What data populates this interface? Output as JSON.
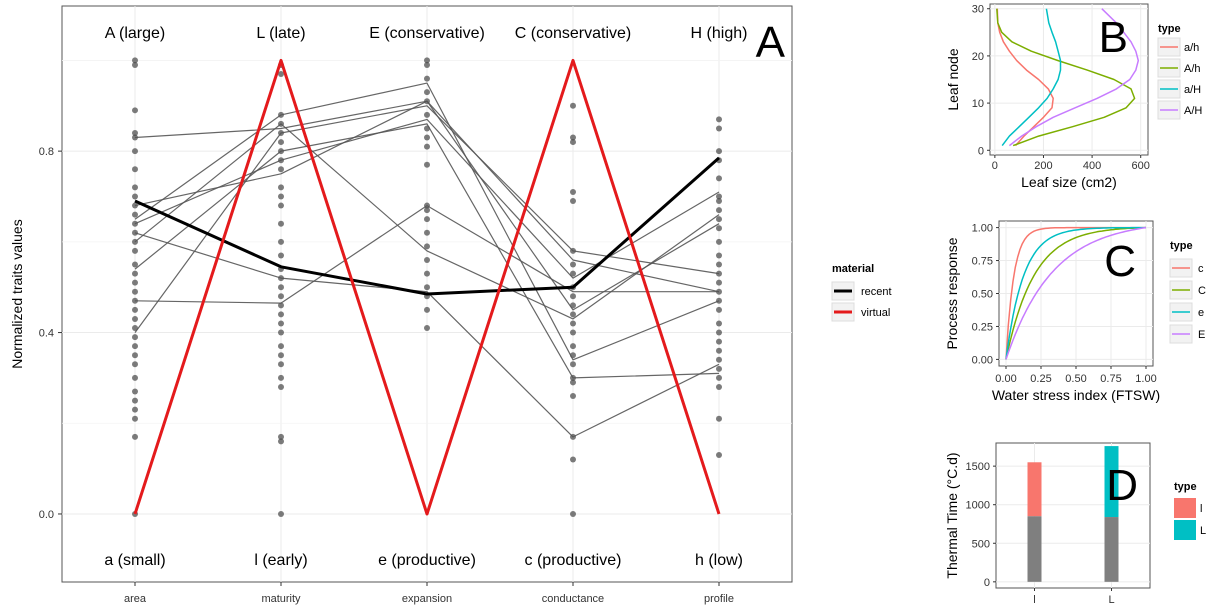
{
  "chart_data": [
    {
      "panel": "A",
      "type": "line",
      "ylabel": "Normalized traits values",
      "yticks": [
        0.0,
        0.4,
        0.8
      ],
      "ylim": [
        -0.15,
        1.12
      ],
      "categories": [
        "area",
        "maturity",
        "expansion",
        "conductance",
        "profile"
      ],
      "top_labels": [
        "A (large)",
        "L (late)",
        "E (conservative)",
        "C (conservative)",
        "H (high)"
      ],
      "bottom_labels": [
        "a (small)",
        "l (early)",
        "e (productive)",
        "c (productive)",
        "h (low)"
      ],
      "legend": {
        "title": "material",
        "entries": [
          "recent",
          "virtual"
        ]
      },
      "series": [
        {
          "name": "recent",
          "color": "#000000",
          "values": [
            0.69,
            0.545,
            0.485,
            0.5,
            0.785
          ]
        },
        {
          "name": "virtual",
          "color": "#e41a1c",
          "values": [
            0.0,
            1.0,
            0.0,
            1.0,
            0.0
          ]
        }
      ],
      "other_lines": [
        [
          0.83,
          0.85,
          0.91,
          0.45,
          0.64
        ],
        [
          0.47,
          0.465,
          0.68,
          0.49,
          0.49
        ],
        [
          0.65,
          0.88,
          0.95,
          0.34,
          0.47
        ],
        [
          0.54,
          0.8,
          0.86,
          0.3,
          0.31
        ],
        [
          0.62,
          0.52,
          0.49,
          0.17,
          0.33
        ],
        [
          0.68,
          0.75,
          0.91,
          0.56,
          0.49
        ],
        [
          0.6,
          0.86,
          0.58,
          0.43,
          0.66
        ],
        [
          0.64,
          0.78,
          0.87,
          0.52,
          0.71
        ],
        [
          0.4,
          0.84,
          0.9,
          0.58,
          0.53
        ]
      ],
      "points": [
        [
          1.0,
          0.99,
          0.89,
          0.84,
          0.83,
          0.8,
          0.76,
          0.72,
          0.7,
          0.68,
          0.66,
          0.64,
          0.62,
          0.6,
          0.58,
          0.55,
          0.53,
          0.51,
          0.49,
          0.47,
          0.45,
          0.43,
          0.41,
          0.39,
          0.37,
          0.35,
          0.33,
          0.3,
          0.27,
          0.25,
          0.23,
          0.21,
          0.17,
          0.0
        ],
        [
          0.99,
          0.97,
          0.88,
          0.86,
          0.84,
          0.82,
          0.8,
          0.78,
          0.76,
          0.72,
          0.7,
          0.68,
          0.64,
          0.6,
          0.57,
          0.54,
          0.52,
          0.5,
          0.48,
          0.46,
          0.44,
          0.42,
          0.4,
          0.37,
          0.35,
          0.33,
          0.3,
          0.28,
          0.17,
          0.16,
          0.0
        ],
        [
          1.0,
          0.99,
          0.96,
          0.93,
          0.91,
          0.88,
          0.85,
          0.83,
          0.81,
          0.77,
          0.68,
          0.67,
          0.65,
          0.62,
          0.59,
          0.56,
          0.53,
          0.5,
          0.48,
          0.45,
          0.41
        ],
        [
          0.9,
          0.83,
          0.82,
          0.71,
          0.69,
          0.58,
          0.55,
          0.53,
          0.5,
          0.48,
          0.46,
          0.44,
          0.42,
          0.4,
          0.37,
          0.35,
          0.33,
          0.3,
          0.29,
          0.26,
          0.17,
          0.12,
          0.0
        ],
        [
          0.87,
          0.85,
          0.8,
          0.78,
          0.74,
          0.7,
          0.69,
          0.67,
          0.65,
          0.63,
          0.6,
          0.57,
          0.55,
          0.53,
          0.51,
          0.49,
          0.47,
          0.45,
          0.42,
          0.4,
          0.38,
          0.36,
          0.34,
          0.32,
          0.3,
          0.28,
          0.21,
          0.13
        ]
      ]
    },
    {
      "panel": "B",
      "type": "line",
      "xlabel": "Leaf size (cm2)",
      "ylabel": "Leaf node",
      "xticks": [
        0,
        200,
        400,
        600
      ],
      "yticks": [
        0,
        10,
        20,
        30
      ],
      "xlim": [
        -20,
        630
      ],
      "ylim": [
        -1,
        31
      ],
      "legend": {
        "title": "type",
        "entries": [
          "a/h",
          "A/h",
          "a/H",
          "A/H"
        ]
      },
      "series": [
        {
          "name": "a/h",
          "color": "#f8766d",
          "x": [
            85,
            120,
            160,
            200,
            235,
            240,
            220,
            180,
            130,
            90,
            60,
            35,
            20,
            12,
            10
          ],
          "y": [
            1,
            3,
            5,
            7,
            9,
            11,
            13,
            15,
            17,
            19,
            21,
            23,
            25,
            27,
            30
          ]
        },
        {
          "name": "A/h",
          "color": "#7cae00",
          "x": [
            75,
            180,
            320,
            450,
            540,
            575,
            560,
            490,
            380,
            260,
            150,
            70,
            28,
            12,
            8
          ],
          "y": [
            1,
            3,
            5,
            7,
            9,
            11,
            13,
            15,
            17,
            19,
            21,
            23,
            25,
            27,
            30
          ]
        },
        {
          "name": "a/H",
          "color": "#00bfc4",
          "x": [
            30,
            60,
            100,
            140,
            180,
            215,
            240,
            260,
            270,
            270,
            260,
            250,
            235,
            222,
            212
          ],
          "y": [
            1,
            3,
            5,
            7,
            9,
            11,
            13,
            15,
            17,
            19,
            21,
            23,
            25,
            27,
            30
          ]
        },
        {
          "name": "A/H",
          "color": "#c77cff",
          "x": [
            60,
            110,
            170,
            240,
            330,
            420,
            500,
            555,
            580,
            590,
            580,
            560,
            530,
            500,
            440
          ],
          "y": [
            1,
            3,
            5,
            7,
            9,
            11,
            13,
            15,
            17,
            19,
            21,
            23,
            25,
            27,
            30
          ]
        }
      ]
    },
    {
      "panel": "C",
      "type": "line",
      "xlabel": "Water stress index (FTSW)",
      "ylabel": "Process response",
      "xticks": [
        "0.00",
        "0.25",
        "0.50",
        "0.75",
        "1.00"
      ],
      "yticks": [
        "0.00",
        "0.25",
        "0.50",
        "0.75",
        "1.00"
      ],
      "xlim": [
        -0.05,
        1.05
      ],
      "ylim": [
        -0.05,
        1.05
      ],
      "legend": {
        "title": "type",
        "entries": [
          "c",
          "C",
          "e",
          "E"
        ]
      },
      "curve_rates": [
        18,
        5,
        8,
        3
      ],
      "series_colors": [
        "#f8766d",
        "#7cae00",
        "#00bfc4",
        "#c77cff"
      ]
    },
    {
      "panel": "D",
      "type": "bar",
      "ylabel": "Thermal Time (°C.d)",
      "categories": [
        "l",
        "L"
      ],
      "yticks": [
        0,
        500,
        1000,
        1500
      ],
      "ylim": [
        -80,
        1800
      ],
      "legend": {
        "title": "type",
        "entries": [
          "l",
          "L"
        ],
        "colors": [
          "#f8766d",
          "#00bfc4"
        ]
      },
      "base_values": [
        850,
        840
      ],
      "top_values": [
        1550,
        1760
      ],
      "base_color": "#7f7f7f"
    }
  ],
  "panel_letters": [
    "A",
    "B",
    "C",
    "D"
  ]
}
